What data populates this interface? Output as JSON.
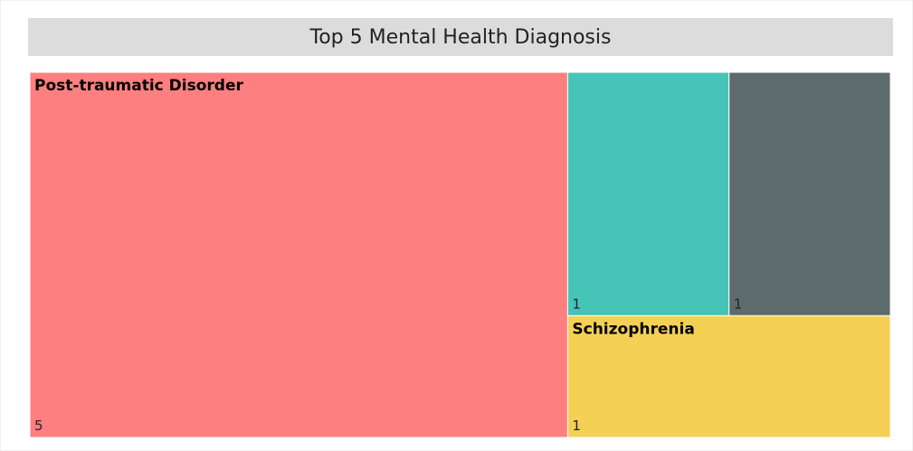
{
  "chart_data": {
    "type": "treemap",
    "title": "Top 5 Mental Health Diagnosis",
    "categories": [
      "Post-traumatic Disorder",
      null,
      null,
      "Schizophrenia"
    ],
    "values": [
      5,
      1,
      1,
      1
    ],
    "colors": [
      "#fd7f7f",
      "#46c4b8",
      "#5d6b6c",
      "#f4d055"
    ]
  }
}
